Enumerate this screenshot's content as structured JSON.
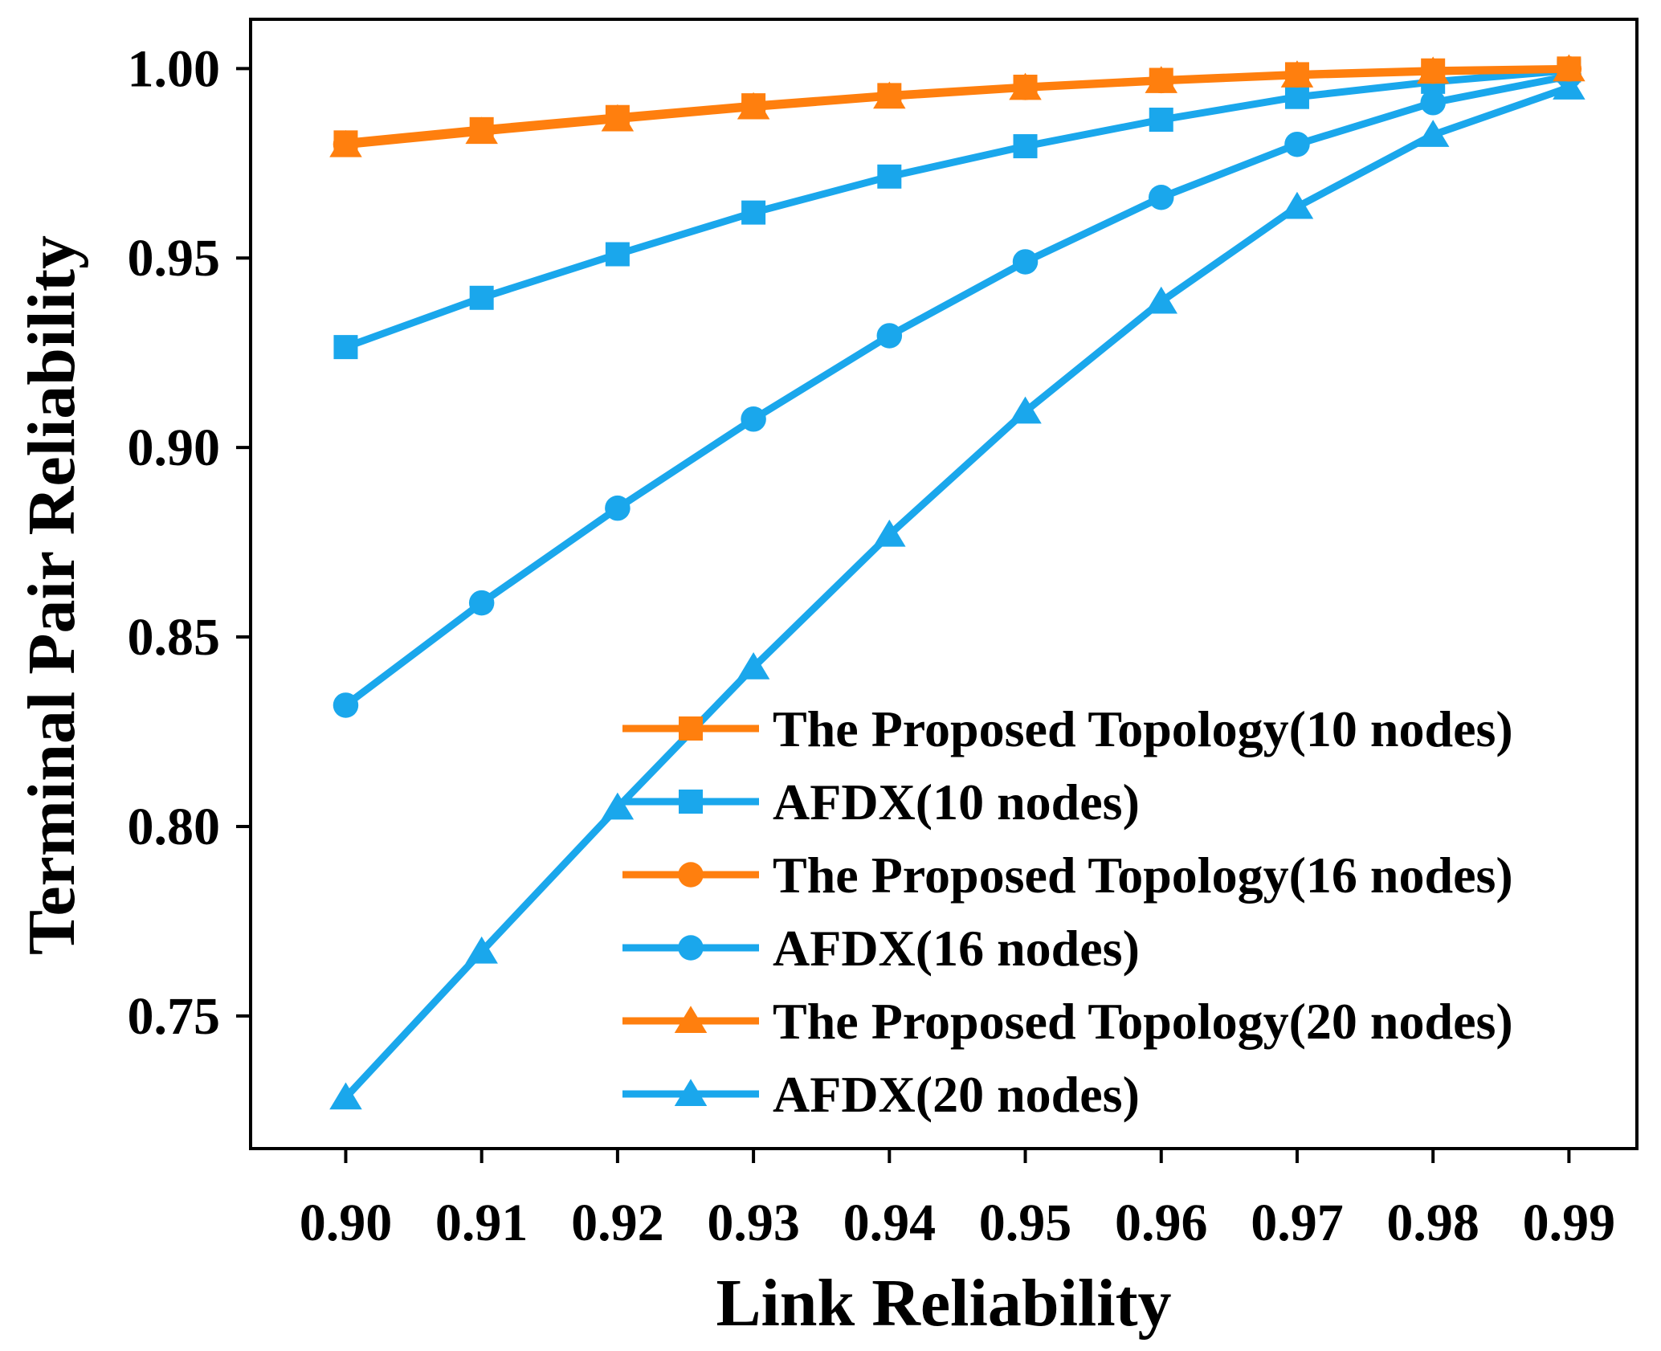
{
  "chart_data": {
    "type": "line",
    "xlabel": "Link Reliability",
    "ylabel": "Terminal Pair Reliability",
    "x": [
      0.9,
      0.91,
      0.92,
      0.93,
      0.94,
      0.95,
      0.96,
      0.97,
      0.98,
      0.99
    ],
    "x_tick_labels": [
      "0.90",
      "0.91",
      "0.92",
      "0.93",
      "0.94",
      "0.95",
      "0.96",
      "0.97",
      "0.98",
      "0.99"
    ],
    "xlim": [
      0.893,
      0.995
    ],
    "ylim": [
      0.715,
      1.013
    ],
    "y_ticks": [
      0.75,
      0.8,
      0.85,
      0.9,
      0.95,
      1.0
    ],
    "y_tick_labels": [
      "0.75",
      "0.80",
      "0.85",
      "0.90",
      "0.95",
      "1.00"
    ],
    "grid": false,
    "legend_position": "bottom-right",
    "colors": {
      "proposed": "#ff7f0e",
      "afdx": "#1aa7ec"
    },
    "series": [
      {
        "name": "The Proposed Topology(10 nodes)",
        "color": "#ff7f0e",
        "marker": "square",
        "values": [
          0.9805,
          0.984,
          0.9872,
          0.9903,
          0.993,
          0.9952,
          0.997,
          0.9985,
          0.9995,
          1.0
        ]
      },
      {
        "name": "AFDX(10 nodes)",
        "color": "#1aa7ec",
        "marker": "square",
        "values": [
          0.9265,
          0.9395,
          0.951,
          0.962,
          0.9715,
          0.9795,
          0.9865,
          0.9925,
          0.9965,
          0.9995
        ]
      },
      {
        "name": "The Proposed Topology(16 nodes)",
        "color": "#ff7f0e",
        "marker": "circle",
        "values": [
          0.98,
          0.9835,
          0.9868,
          0.99,
          0.9928,
          0.995,
          0.9968,
          0.9983,
          0.9993,
          0.9999
        ]
      },
      {
        "name": "AFDX(16 nodes)",
        "color": "#1aa7ec",
        "marker": "circle",
        "values": [
          0.832,
          0.859,
          0.884,
          0.9075,
          0.9295,
          0.949,
          0.966,
          0.98,
          0.991,
          0.998
        ]
      },
      {
        "name": "The Proposed Topology(20 nodes)",
        "color": "#ff7f0e",
        "marker": "triangle",
        "values": [
          0.9798,
          0.9833,
          0.9866,
          0.9898,
          0.9926,
          0.9949,
          0.9967,
          0.9982,
          0.9992,
          0.9998
        ]
      },
      {
        "name": "AFDX(20 nodes)",
        "color": "#1aa7ec",
        "marker": "triangle",
        "values": [
          0.7285,
          0.767,
          0.805,
          0.842,
          0.877,
          0.9095,
          0.9385,
          0.9635,
          0.9825,
          0.995
        ]
      }
    ]
  }
}
